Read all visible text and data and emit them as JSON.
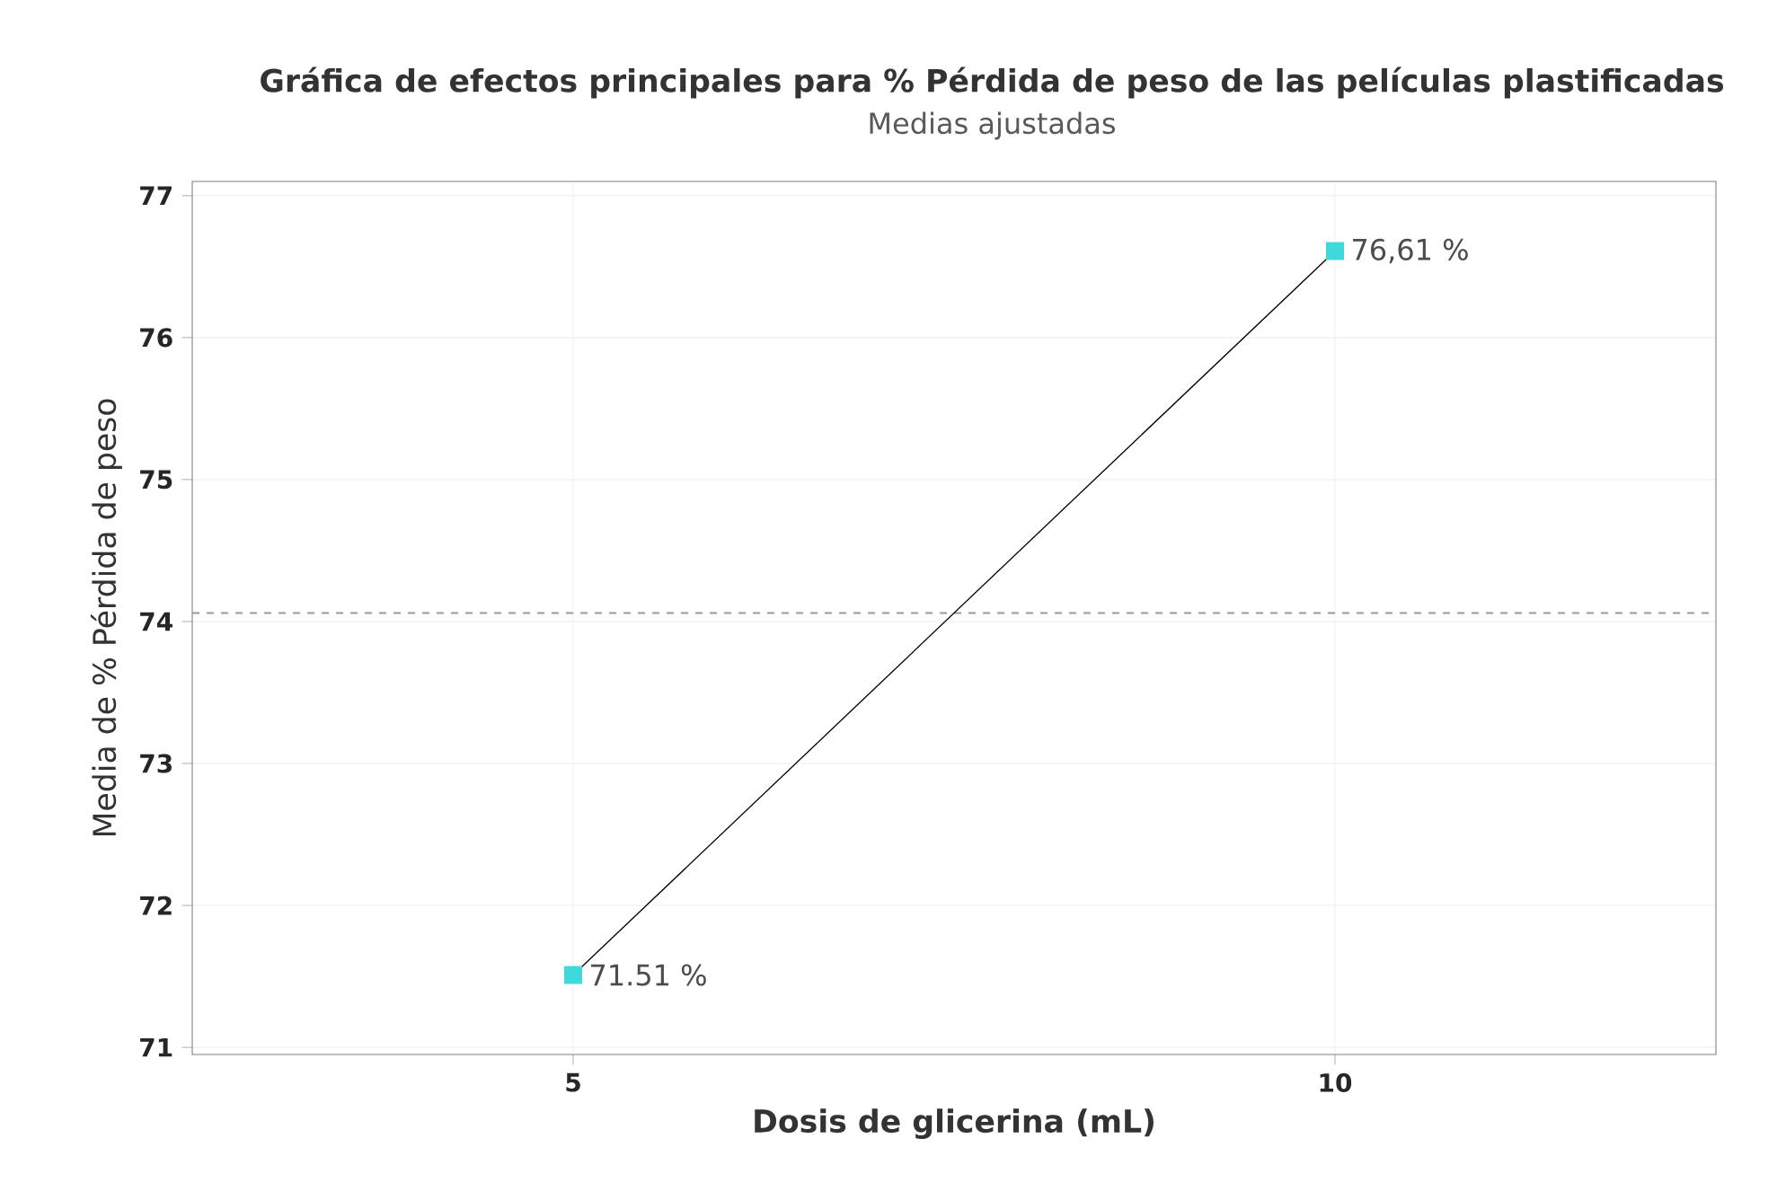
{
  "chart_data": {
    "type": "line",
    "title": "Gráfica de efectos principales para % Pérdida de peso de las películas plastificadas",
    "subtitle": "Medias ajustadas",
    "xlabel": "Dosis de glicerina (mL)",
    "ylabel": "Media de % Pérdida de peso",
    "x": [
      5,
      10
    ],
    "series": [
      {
        "color": "#3fd9dc",
        "values": [
          71.51,
          76.61
        ],
        "value_labels": [
          "71.51 %",
          "76,61 %"
        ]
      }
    ],
    "xlim": [
      2.5,
      12.5
    ],
    "xticks": [
      5,
      10
    ],
    "ylim": [
      70.95,
      77.1
    ],
    "yticks": [
      71,
      72,
      73,
      74,
      75,
      76,
      77
    ],
    "ref_lines": [
      {
        "axis": "y",
        "value": 74.06,
        "color": "#999999",
        "line_style": "dashed"
      }
    ],
    "grid": true,
    "marker": "square",
    "line_style": "solid"
  }
}
